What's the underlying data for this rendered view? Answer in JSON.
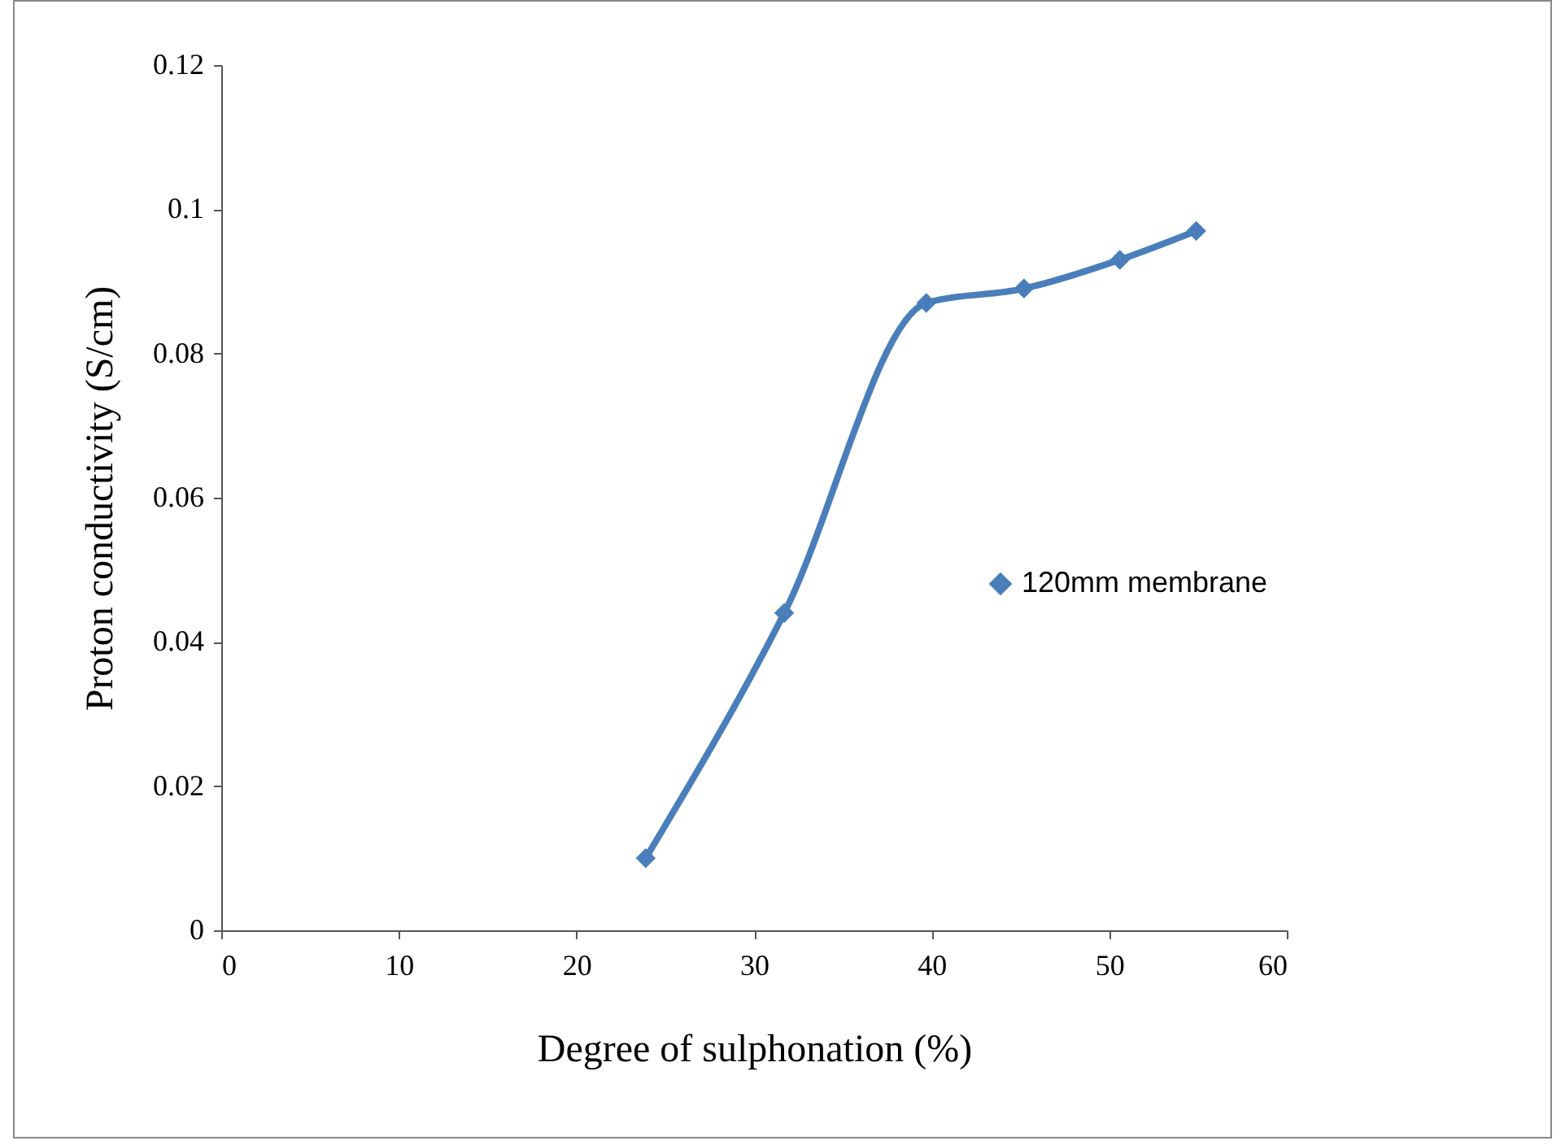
{
  "chart_data": {
    "type": "line",
    "xlabel": "Degree of sulphonation  (%)",
    "ylabel": "Proton conductivity   (S/cm)",
    "x": [
      23.9,
      31.7,
      39.7,
      45.2,
      50.6,
      54.9
    ],
    "series": [
      {
        "name": "120mm membrane",
        "color": "#4a7ebb",
        "values": [
          0.01,
          0.044,
          0.087,
          0.089,
          0.093,
          0.097
        ]
      }
    ],
    "xlim": [
      0,
      60
    ],
    "xticks": [
      0,
      10,
      20,
      30,
      40,
      50,
      60
    ],
    "ylim": [
      0,
      0.12
    ],
    "yticks": [
      0,
      0.02,
      0.04,
      0.06,
      0.08,
      0.1,
      0.12
    ],
    "grid": false,
    "legend": "right",
    "marker": "diamond",
    "line_style": "solid"
  }
}
